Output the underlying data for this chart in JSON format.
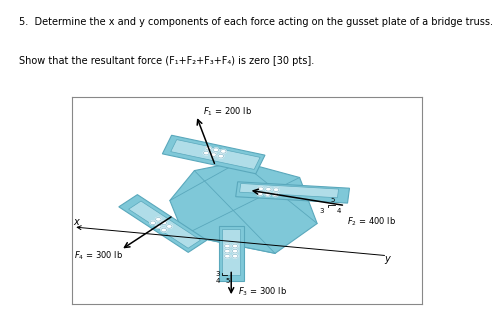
{
  "title_line1": "5.  Determine the x and y components of each force acting on the gusset plate of a bridge truss.",
  "title_line2": "Show that the resultant force (F₁+F₂+F₃+F₄) is zero [30 pts].",
  "bg_color": "#ffffff",
  "text_color": "#000000",
  "plate_main": "#7fc8d8",
  "plate_light": "#b0dde8",
  "plate_mid": "#5aa8bc",
  "plate_dark": "#4a98ac",
  "bolt_hole": "#cce8f0",
  "F1_label": "$F_1$ = 200 lb",
  "F2_label": "$F_2$ = 400 lb",
  "F3_label": "$F_3$ = 300 lb",
  "F4_label": "$F_4$ = 300 lb",
  "x_label": "x",
  "y_label": "y"
}
